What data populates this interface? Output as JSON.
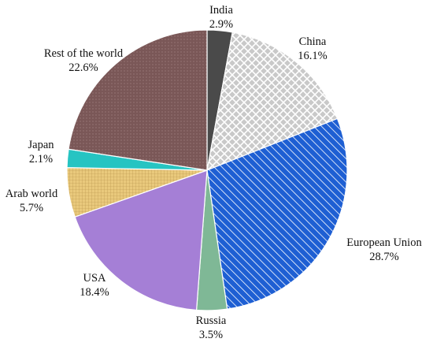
{
  "chart_data": {
    "type": "pie",
    "start_angle_deg": 0,
    "direction": "clockwise",
    "slices": [
      {
        "label": "India",
        "value_label": "2.9%",
        "value": 2.9,
        "color": "#4a4a4a",
        "pattern": "solid"
      },
      {
        "label": "China",
        "value_label": "16.1%",
        "value": 16.1,
        "color": "#c8c8c8",
        "pattern": "crosshatch"
      },
      {
        "label": "European Union",
        "value_label": "28.7%",
        "value": 28.7,
        "color": "#1f5fd1",
        "pattern": "diagonal"
      },
      {
        "label": "Russia",
        "value_label": "3.5%",
        "value": 3.5,
        "color": "#7fb896",
        "pattern": "solid"
      },
      {
        "label": "USA",
        "value_label": "18.4%",
        "value": 18.4,
        "color": "#a57fd6",
        "pattern": "solid"
      },
      {
        "label": "Arab world",
        "value_label": "5.7%",
        "value": 5.7,
        "color": "#e8c77a",
        "pattern": "grid"
      },
      {
        "label": "Japan",
        "value_label": "2.1%",
        "value": 2.1,
        "color": "#26c4c2",
        "pattern": "solid"
      },
      {
        "label": "Rest of the world",
        "value_label": "22.6%",
        "value": 22.6,
        "color": "#7a5656",
        "pattern": "dots"
      }
    ]
  }
}
